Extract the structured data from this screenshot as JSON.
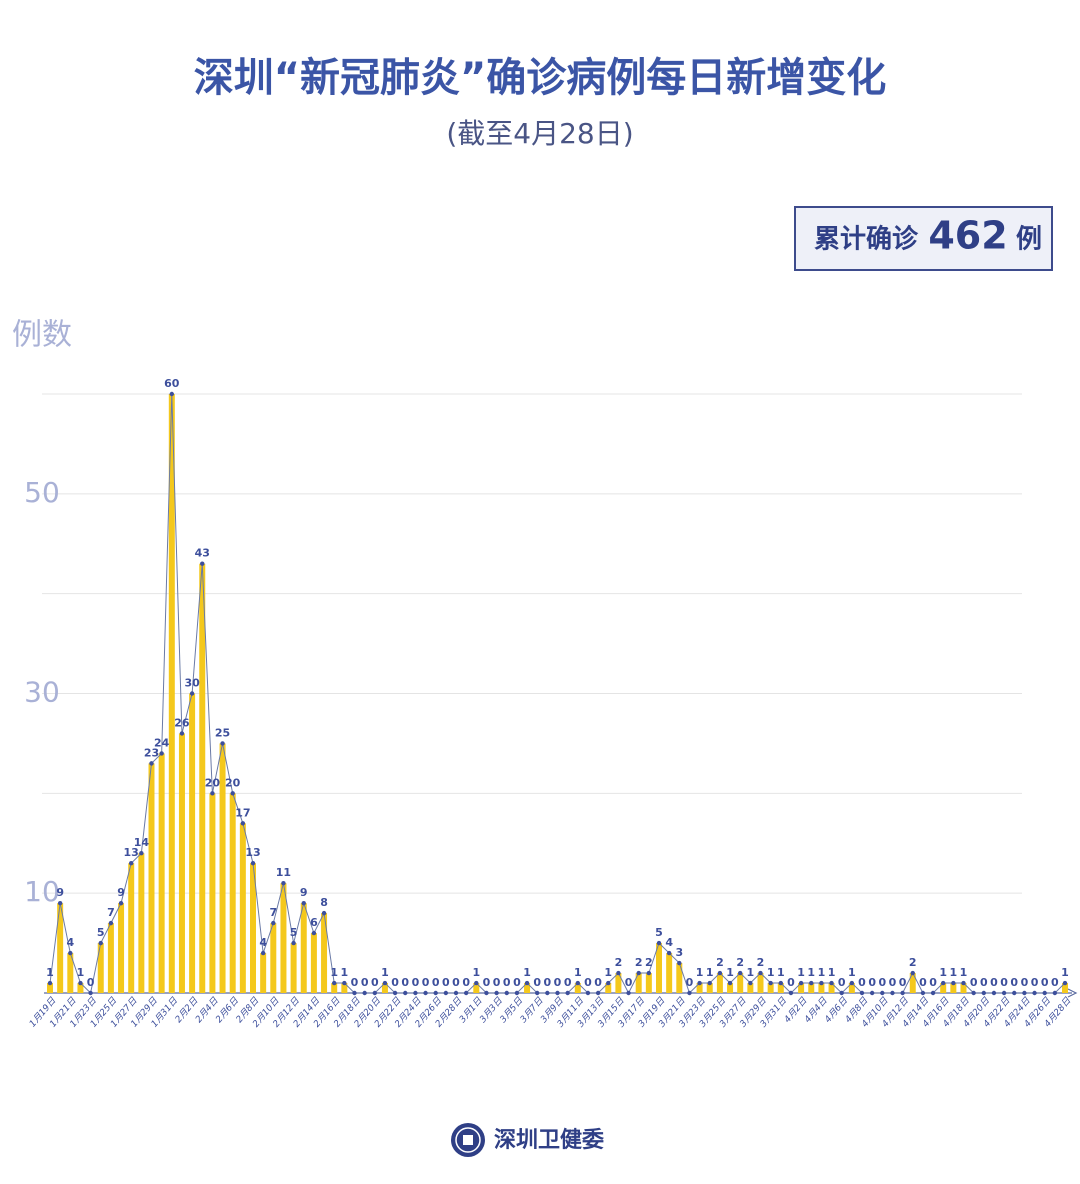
{
  "chart_data": {
    "type": "bar-line",
    "title": "深圳“新冠肺炎”确诊病例每日新增变化",
    "subtitle": "(截至4月28日)",
    "y_label": "例数",
    "summary": {
      "label": "累计确诊",
      "value": 462,
      "unit": "例"
    },
    "source": "深圳卫健委",
    "categories": [
      "1月19日",
      null,
      "1月21日",
      null,
      "1月23日",
      null,
      "1月25日",
      null,
      "1月27日",
      null,
      "1月29日",
      null,
      "1月31日",
      null,
      "2月2日",
      null,
      "2月4日",
      null,
      "2月6日",
      null,
      "2月8日",
      null,
      "2月10日",
      null,
      "2月12日",
      null,
      "2月14日",
      null,
      "2月16日",
      null,
      "2月18日",
      null,
      "2月20日",
      null,
      "2月22日",
      null,
      "2月24日",
      null,
      "2月26日",
      null,
      "2月28日",
      null,
      "3月1日",
      null,
      "3月3日",
      null,
      "3月5日",
      null,
      "3月7日",
      null,
      "3月9日",
      null,
      "3月11日",
      null,
      "3月13日",
      null,
      "3月15日",
      null,
      "3月17日",
      null,
      "3月19日",
      null,
      "3月21日",
      null,
      "3月23日",
      null,
      "3月25日",
      null,
      "3月27日",
      null,
      "3月29日",
      null,
      "3月31日",
      null,
      "4月2日",
      null,
      "4月4日",
      null,
      "4月6日",
      null,
      "4月8日",
      null,
      "4月10日",
      null,
      "4月12日",
      null,
      "4月14日",
      null,
      "4月16日",
      null,
      "4月18日",
      null,
      "4月20日",
      null,
      "4月22日",
      null,
      "4月24日",
      null,
      "4月26日",
      null,
      "4月28日"
    ],
    "values": [
      1,
      9,
      4,
      1,
      0,
      5,
      7,
      9,
      13,
      14,
      23,
      24,
      60,
      26,
      30,
      43,
      20,
      25,
      20,
      17,
      13,
      4,
      7,
      11,
      5,
      9,
      6,
      8,
      1,
      1,
      0,
      0,
      0,
      1,
      0,
      0,
      0,
      0,
      0,
      0,
      0,
      0,
      1,
      0,
      0,
      0,
      0,
      1,
      0,
      0,
      0,
      0,
      1,
      0,
      0,
      1,
      2,
      0,
      2,
      2,
      5,
      4,
      3,
      0,
      1,
      1,
      2,
      1,
      2,
      1,
      2,
      1,
      1,
      0,
      1,
      1,
      1,
      1,
      0,
      1,
      0,
      0,
      0,
      0,
      0,
      2,
      0,
      0,
      1,
      1,
      1,
      0,
      0,
      0,
      0,
      0,
      0,
      0,
      0,
      0,
      1
    ],
    "bar_color": "#f4c81c",
    "line_color": "#6a7aa6",
    "point_color": "#3d4f9c",
    "ylim": [
      0,
      60
    ],
    "yticks": [
      10,
      30,
      50
    ],
    "grid_lines": [
      10,
      20,
      30,
      40,
      50,
      60
    ],
    "grid": true
  }
}
